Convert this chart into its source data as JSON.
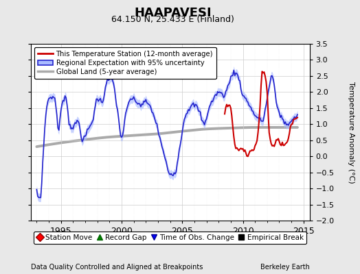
{
  "title": "HAAPAVESI",
  "subtitle": "64.150 N, 25.433 E (Finland)",
  "ylabel": "Temperature Anomaly (°C)",
  "xlabel_left": "Data Quality Controlled and Aligned at Breakpoints",
  "xlabel_right": "Berkeley Earth",
  "xlim": [
    1992.5,
    2015.5
  ],
  "ylim": [
    -2.0,
    3.5
  ],
  "yticks": [
    -2,
    -1.5,
    -1,
    -0.5,
    0,
    0.5,
    1,
    1.5,
    2,
    2.5,
    3,
    3.5
  ],
  "xticks": [
    1995,
    2000,
    2005,
    2010,
    2015
  ],
  "legend1_labels": [
    "This Temperature Station (12-month average)",
    "Regional Expectation with 95% uncertainty",
    "Global Land (5-year average)"
  ],
  "legend2_labels": [
    "Station Move",
    "Record Gap",
    "Time of Obs. Change",
    "Empirical Break"
  ],
  "red_line_color": "#cc0000",
  "blue_line_color": "#2222cc",
  "blue_fill_color": "#aabbff",
  "gray_line_color": "#aaaaaa",
  "background_color": "#ffffff",
  "grid_color": "#cccccc",
  "outer_bg": "#e8e8e8"
}
